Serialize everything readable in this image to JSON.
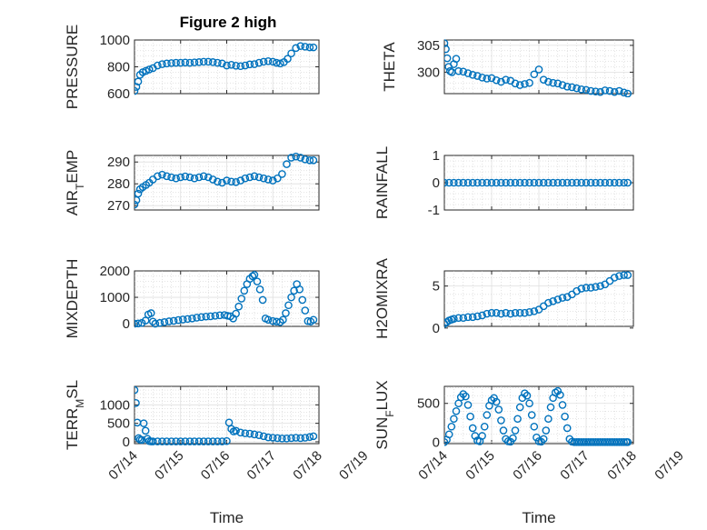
{
  "figure": {
    "title": "Figure 2 high",
    "marker_color": "#0072BD"
  },
  "chart_data": [
    {
      "type": "scatter",
      "ylabel": "PRESSURE",
      "xlabel": "",
      "title": "Figure 2 high",
      "ylim": [
        600,
        1000
      ],
      "yticks": [
        600,
        800,
        1000
      ],
      "xlim": [
        0,
        4
      ],
      "x_axis": "date",
      "grid": true,
      "series": [
        {
          "x": [
            0.0,
            0.04,
            0.08,
            0.12,
            0.18,
            0.25,
            0.32,
            0.4,
            0.5,
            0.6,
            0.7,
            0.8,
            0.9,
            1.0,
            1.1,
            1.2,
            1.3,
            1.4,
            1.5,
            1.6,
            1.7,
            1.8,
            1.9,
            2.0,
            2.1,
            2.2,
            2.3,
            2.4,
            2.5,
            2.6,
            2.7,
            2.8,
            2.9,
            3.0,
            3.08,
            3.16,
            3.24,
            3.32,
            3.4,
            3.5,
            3.6,
            3.7,
            3.8,
            3.88
          ],
          "y": [
            620,
            650,
            690,
            740,
            760,
            770,
            780,
            790,
            810,
            820,
            825,
            828,
            830,
            830,
            832,
            830,
            833,
            835,
            838,
            838,
            835,
            830,
            825,
            810,
            815,
            808,
            805,
            810,
            818,
            820,
            830,
            838,
            842,
            838,
            830,
            825,
            835,
            860,
            900,
            940,
            955,
            950,
            945,
            945
          ]
        }
      ]
    },
    {
      "type": "scatter",
      "ylabel": "THETA",
      "xlabel": "",
      "ylim": [
        296,
        306
      ],
      "yticks": [
        300,
        305
      ],
      "xlim": [
        0,
        4
      ],
      "x_axis": "date",
      "grid": true,
      "series": [
        {
          "x": [
            0.0,
            0.03,
            0.06,
            0.09,
            0.12,
            0.16,
            0.2,
            0.25,
            0.3,
            0.4,
            0.5,
            0.6,
            0.7,
            0.8,
            0.9,
            1.0,
            1.1,
            1.2,
            1.3,
            1.4,
            1.5,
            1.6,
            1.7,
            1.8,
            1.9,
            2.0,
            2.1,
            2.2,
            2.3,
            2.4,
            2.5,
            2.6,
            2.7,
            2.8,
            2.9,
            3.0,
            3.1,
            3.2,
            3.3,
            3.4,
            3.5,
            3.6,
            3.7,
            3.8,
            3.88
          ],
          "y": [
            305.4,
            304.3,
            302.6,
            301.0,
            300.2,
            300.0,
            301.5,
            302.5,
            300.2,
            300.1,
            299.8,
            299.5,
            299.3,
            299.0,
            298.8,
            298.9,
            298.5,
            298.2,
            298.6,
            298.4,
            297.9,
            297.6,
            297.8,
            298.0,
            299.6,
            300.5,
            298.6,
            298.2,
            298.0,
            297.9,
            297.6,
            297.3,
            297.2,
            297.0,
            296.8,
            296.7,
            296.5,
            296.4,
            296.3,
            296.6,
            296.5,
            296.3,
            296.5,
            296.2,
            296.0
          ]
        }
      ]
    },
    {
      "type": "scatter",
      "ylabel": "AIR_TEMP",
      "xlabel": "",
      "ylim": [
        268,
        293
      ],
      "yticks": [
        270,
        280,
        290
      ],
      "xlim": [
        0,
        4
      ],
      "x_axis": "date",
      "grid": true,
      "series": [
        {
          "x": [
            0.0,
            0.04,
            0.08,
            0.12,
            0.18,
            0.25,
            0.32,
            0.4,
            0.5,
            0.6,
            0.7,
            0.8,
            0.9,
            1.0,
            1.1,
            1.2,
            1.3,
            1.4,
            1.5,
            1.6,
            1.7,
            1.8,
            1.9,
            2.0,
            2.1,
            2.2,
            2.3,
            2.4,
            2.5,
            2.6,
            2.7,
            2.8,
            2.9,
            3.0,
            3.1,
            3.2,
            3.3,
            3.4,
            3.5,
            3.6,
            3.7,
            3.8,
            3.88
          ],
          "y": [
            270.5,
            272.5,
            275.5,
            277.5,
            278.5,
            279.5,
            280.5,
            282.0,
            283.5,
            284.2,
            283.5,
            283.0,
            282.5,
            283.0,
            283.4,
            283.0,
            282.5,
            283.0,
            283.5,
            283.0,
            282.0,
            281.0,
            280.5,
            281.5,
            281.0,
            280.8,
            281.5,
            282.5,
            283.0,
            283.5,
            283.0,
            282.5,
            282.0,
            281.5,
            282.5,
            284.5,
            289.0,
            292.0,
            292.5,
            292.0,
            291.2,
            290.8,
            290.8
          ]
        }
      ]
    },
    {
      "type": "scatter",
      "ylabel": "RAINFALL",
      "xlabel": "",
      "ylim": [
        -1,
        1
      ],
      "yticks": [
        -1,
        0,
        1
      ],
      "xlim": [
        0,
        4
      ],
      "x_axis": "date",
      "grid": true,
      "series": [
        {
          "x": [
            0.0,
            0.1,
            0.2,
            0.3,
            0.4,
            0.5,
            0.6,
            0.7,
            0.8,
            0.9,
            1.0,
            1.1,
            1.2,
            1.3,
            1.4,
            1.5,
            1.6,
            1.7,
            1.8,
            1.9,
            2.0,
            2.1,
            2.2,
            2.3,
            2.4,
            2.5,
            2.6,
            2.7,
            2.8,
            2.9,
            3.0,
            3.1,
            3.2,
            3.3,
            3.4,
            3.5,
            3.6,
            3.7,
            3.8,
            3.88
          ],
          "y": [
            0,
            0,
            0,
            0,
            0,
            0,
            0,
            0,
            0,
            0,
            0,
            0,
            0,
            0,
            0,
            0,
            0,
            0,
            0,
            0,
            0,
            0,
            0,
            0,
            0,
            0,
            0,
            0,
            0,
            0,
            0,
            0,
            0,
            0,
            0,
            0,
            0,
            0,
            0,
            0
          ]
        }
      ]
    },
    {
      "type": "scatter",
      "ylabel": "MIXDEPTH",
      "xlabel": "",
      "ylim": [
        -100,
        2000
      ],
      "yticks": [
        0,
        1000,
        2000
      ],
      "xlim": [
        0,
        4
      ],
      "x_axis": "date",
      "grid": true,
      "series": [
        {
          "x": [
            0.0,
            0.08,
            0.16,
            0.24,
            0.3,
            0.36,
            0.4,
            0.45,
            0.55,
            0.65,
            0.75,
            0.85,
            0.95,
            1.05,
            1.15,
            1.25,
            1.35,
            1.45,
            1.55,
            1.65,
            1.75,
            1.85,
            1.95,
            2.02,
            2.08,
            2.14,
            2.2,
            2.26,
            2.32,
            2.38,
            2.44,
            2.5,
            2.56,
            2.6,
            2.66,
            2.72,
            2.78,
            2.84,
            2.9,
            3.0,
            3.08,
            3.16,
            3.22,
            3.28,
            3.34,
            3.4,
            3.46,
            3.52,
            3.58,
            3.64,
            3.7,
            3.76,
            3.82,
            3.88
          ],
          "y": [
            0,
            10,
            30,
            120,
            350,
            400,
            80,
            0,
            30,
            60,
            90,
            110,
            140,
            160,
            180,
            200,
            230,
            250,
            270,
            280,
            300,
            320,
            330,
            300,
            280,
            200,
            380,
            650,
            950,
            1250,
            1500,
            1700,
            1800,
            1850,
            1600,
            1300,
            900,
            200,
            150,
            100,
            80,
            60,
            150,
            400,
            700,
            1000,
            1250,
            1500,
            1300,
            900,
            500,
            100,
            80,
            150
          ]
        }
      ]
    },
    {
      "type": "scatter",
      "ylabel": "H2OMIXRA",
      "xlabel": "",
      "ylim": [
        0.2,
        6.8
      ],
      "yticks": [
        0,
        5
      ],
      "xlim": [
        0,
        4
      ],
      "x_axis": "date",
      "grid": true,
      "series": [
        {
          "x": [
            0.0,
            0.05,
            0.1,
            0.15,
            0.2,
            0.3,
            0.4,
            0.5,
            0.6,
            0.7,
            0.8,
            0.9,
            1.0,
            1.1,
            1.2,
            1.3,
            1.4,
            1.5,
            1.6,
            1.7,
            1.8,
            1.9,
            2.0,
            2.1,
            2.2,
            2.3,
            2.4,
            2.5,
            2.6,
            2.7,
            2.8,
            2.9,
            3.0,
            3.1,
            3.2,
            3.3,
            3.4,
            3.5,
            3.6,
            3.7,
            3.8,
            3.88
          ],
          "y": [
            0.5,
            0.7,
            0.9,
            1.0,
            1.1,
            1.2,
            1.2,
            1.3,
            1.3,
            1.4,
            1.5,
            1.7,
            1.8,
            1.8,
            1.7,
            1.8,
            1.7,
            1.8,
            1.8,
            1.8,
            1.9,
            2.0,
            2.2,
            2.6,
            3.0,
            3.2,
            3.4,
            3.6,
            3.7,
            4.0,
            4.4,
            4.7,
            4.8,
            4.8,
            4.9,
            5.0,
            5.2,
            5.6,
            6.0,
            6.2,
            6.3,
            6.3
          ]
        }
      ]
    },
    {
      "type": "scatter",
      "ylabel": "TERR_MSL",
      "xlabel": "Time",
      "ylim": [
        -50,
        1500
      ],
      "yticks": [
        0,
        500,
        1000
      ],
      "xlim": [
        0,
        4
      ],
      "x_axis": "date",
      "xticklabels": [
        "07/14",
        "07/15",
        "07/16",
        "07/17",
        "07/18",
        "07/19"
      ],
      "grid": true,
      "series": [
        {
          "x": [
            0.0,
            0.03,
            0.06,
            0.09,
            0.12,
            0.16,
            0.2,
            0.24,
            0.28,
            0.32,
            0.36,
            0.4,
            0.5,
            0.6,
            0.7,
            0.8,
            0.9,
            1.0,
            1.1,
            1.2,
            1.3,
            1.4,
            1.5,
            1.6,
            1.7,
            1.8,
            1.9,
            2.0,
            2.05,
            2.1,
            2.15,
            2.2,
            2.3,
            2.4,
            2.5,
            2.6,
            2.7,
            2.8,
            2.9,
            3.0,
            3.1,
            3.2,
            3.3,
            3.4,
            3.5,
            3.6,
            3.7,
            3.8,
            3.88
          ],
          "y": [
            1400,
            1050,
            520,
            100,
            60,
            50,
            500,
            300,
            80,
            20,
            10,
            10,
            10,
            10,
            10,
            10,
            10,
            10,
            10,
            10,
            10,
            10,
            10,
            10,
            10,
            10,
            10,
            20,
            520,
            350,
            280,
            300,
            250,
            230,
            220,
            200,
            180,
            150,
            120,
            110,
            100,
            90,
            90,
            100,
            110,
            100,
            110,
            130,
            150
          ]
        }
      ]
    },
    {
      "type": "scatter",
      "ylabel": "SUN_FLUX",
      "xlabel": "Time",
      "ylim": [
        -20,
        720
      ],
      "yticks": [
        0,
        500
      ],
      "xlim": [
        0,
        4
      ],
      "x_axis": "date",
      "xticklabels": [
        "07/14",
        "07/15",
        "07/16",
        "07/17",
        "07/18",
        "07/19"
      ],
      "grid": true,
      "series": [
        {
          "x": [
            0.0,
            0.05,
            0.1,
            0.15,
            0.2,
            0.25,
            0.3,
            0.35,
            0.4,
            0.45,
            0.5,
            0.55,
            0.6,
            0.65,
            0.7,
            0.75,
            0.8,
            0.85,
            0.9,
            0.95,
            1.0,
            1.05,
            1.1,
            1.15,
            1.2,
            1.25,
            1.3,
            1.35,
            1.4,
            1.45,
            1.5,
            1.55,
            1.6,
            1.65,
            1.7,
            1.75,
            1.8,
            1.85,
            1.9,
            1.95,
            2.0,
            2.05,
            2.1,
            2.15,
            2.2,
            2.25,
            2.3,
            2.35,
            2.4,
            2.45,
            2.5,
            2.55,
            2.6,
            2.65,
            2.7,
            2.75,
            2.8,
            2.85,
            2.9,
            2.95,
            3.0,
            3.05,
            3.1,
            3.15,
            3.2,
            3.25,
            3.3,
            3.35,
            3.4,
            3.45,
            3.5,
            3.55,
            3.6,
            3.65,
            3.7,
            3.75,
            3.8,
            3.85,
            3.88
          ],
          "y": [
            0,
            30,
            100,
            200,
            300,
            400,
            500,
            580,
            620,
            590,
            480,
            330,
            180,
            80,
            20,
            10,
            80,
            200,
            350,
            470,
            540,
            570,
            520,
            420,
            280,
            150,
            40,
            10,
            5,
            50,
            150,
            300,
            450,
            570,
            630,
            600,
            500,
            350,
            200,
            60,
            10,
            5,
            40,
            150,
            300,
            450,
            570,
            640,
            660,
            610,
            480,
            330,
            180,
            40,
            5,
            0,
            0,
            0,
            0,
            0,
            0,
            0,
            0,
            0,
            0,
            0,
            0,
            0,
            0,
            0,
            0,
            0,
            0,
            0,
            0,
            0,
            0,
            0,
            0
          ]
        }
      ]
    }
  ]
}
